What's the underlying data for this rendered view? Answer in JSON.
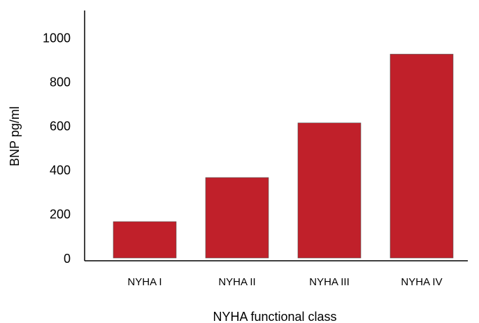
{
  "chart_data": {
    "type": "bar",
    "x_label": "NYHA functional class",
    "y_label": "BNP pg/ml",
    "categories": [
      "NYHA I",
      "NYHA II",
      "NYHA III",
      "NYHA IV"
    ],
    "values": [
      165,
      365,
      613,
      925
    ],
    "color": "#c0202a",
    "ylim": [
      0,
      1120
    ],
    "yticks": [
      0,
      200,
      400,
      600,
      800,
      1000
    ],
    "grid": false
  }
}
